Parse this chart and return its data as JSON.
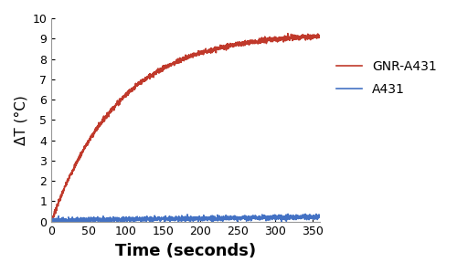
{
  "title": "",
  "xlabel": "Time (seconds)",
  "ylabel": "ΔT (°C)",
  "xlim": [
    0,
    360
  ],
  "ylim": [
    0,
    10
  ],
  "xticks": [
    0,
    50,
    100,
    150,
    200,
    250,
    300,
    350
  ],
  "yticks": [
    0,
    1,
    2,
    3,
    4,
    5,
    6,
    7,
    8,
    9,
    10
  ],
  "gnr_color": "#c0392b",
  "a431_color": "#4472c4",
  "gnr_label": "GNR-A431",
  "a431_label": "A431",
  "gnr_saturation": 9.3,
  "gnr_time_constant": 90,
  "a431_mean": 0.18,
  "a431_noise_std": 0.06,
  "gnr_noise_std": 0.06,
  "xlabel_fontsize": 13,
  "ylabel_fontsize": 11,
  "tick_fontsize": 9,
  "legend_fontsize": 10,
  "line_width": 1.2,
  "figsize": [
    5.0,
    2.99
  ],
  "dpi": 100
}
